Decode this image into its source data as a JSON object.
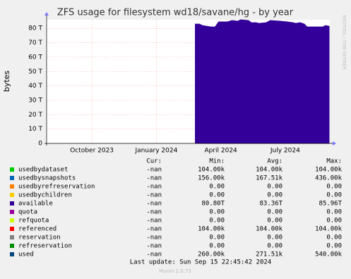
{
  "chart_data": {
    "type": "area",
    "title": "ZFS usage for filesystem wd18/savane/hg - by year",
    "y_label": "bytes",
    "side_text": "RRDTOOL / TOBI OETIKER",
    "xlim": [
      0,
      400
    ],
    "xticks": [
      {
        "value": 64,
        "label": "October 2023"
      },
      {
        "value": 155,
        "label": "January 2024"
      },
      {
        "value": 246,
        "label": "April 2024"
      },
      {
        "value": 337,
        "label": "July 2024"
      }
    ],
    "ylim": [
      0,
      86
    ],
    "yticks": [
      0,
      {
        "value": 10,
        "label": "10 T"
      },
      {
        "value": 20,
        "label": "20 T"
      },
      {
        "value": 30,
        "label": "30 T"
      },
      {
        "value": 40,
        "label": "40 T"
      },
      {
        "value": 50,
        "label": "50 T"
      },
      {
        "value": 60,
        "label": "60 T"
      },
      {
        "value": 70,
        "label": "70 T"
      },
      {
        "value": 80,
        "label": "80 T"
      }
    ],
    "grid": true,
    "series": [
      {
        "name": "available",
        "color": "#330099",
        "x": [
          210,
          216,
          220,
          226,
          232,
          238,
          243,
          255,
          262,
          270,
          274,
          285,
          289,
          296,
          300,
          310,
          316,
          330,
          340,
          348,
          352,
          358,
          364,
          368,
          390,
          394,
          399
        ],
        "values": [
          83.0,
          83.0,
          82.0,
          81.5,
          81.0,
          81.0,
          84.5,
          84.5,
          85.5,
          85.0,
          86.0,
          85.5,
          84.0,
          84.0,
          83.5,
          84.0,
          85.5,
          85.0,
          84.5,
          84.0,
          83.5,
          84.0,
          83.0,
          81.0,
          81.0,
          82.0,
          81.5
        ]
      }
    ]
  },
  "legend": {
    "headers": [
      "Cur:",
      "Min:",
      "Avg:",
      "Max:"
    ],
    "rows": [
      {
        "name": "usedbydataset",
        "color": "#00cc00",
        "cells": [
          "-nan",
          "104.00k",
          "104.00k",
          "104.00k"
        ]
      },
      {
        "name": "usedbysnapshots",
        "color": "#0066b3",
        "cells": [
          "-nan",
          "156.00k",
          "167.51k",
          "436.00k"
        ]
      },
      {
        "name": "usedbyrefreservation",
        "color": "#ff8000",
        "cells": [
          "-nan",
          "0.00",
          "0.00",
          "0.00"
        ]
      },
      {
        "name": "usedbychildren",
        "color": "#ffcc00",
        "cells": [
          "-nan",
          "0.00",
          "0.00",
          "0.00"
        ]
      },
      {
        "name": "available",
        "color": "#330099",
        "cells": [
          "-nan",
          "80.80T",
          "83.36T",
          "85.96T"
        ]
      },
      {
        "name": "quota",
        "color": "#990099",
        "cells": [
          "-nan",
          "0.00",
          "0.00",
          "0.00"
        ]
      },
      {
        "name": "refquota",
        "color": "#ccff00",
        "cells": [
          "-nan",
          "0.00",
          "0.00",
          "0.00"
        ]
      },
      {
        "name": "referenced",
        "color": "#ff0000",
        "cells": [
          "-nan",
          "104.00k",
          "104.00k",
          "104.00k"
        ]
      },
      {
        "name": "reservation",
        "color": "#808080",
        "cells": [
          "-nan",
          "0.00",
          "0.00",
          "0.00"
        ]
      },
      {
        "name": "refreservation",
        "color": "#008f00",
        "cells": [
          "-nan",
          "0.00",
          "0.00",
          "0.00"
        ]
      },
      {
        "name": "used",
        "color": "#00487d",
        "cells": [
          "-nan",
          "260.00k",
          "271.51k",
          "540.00k"
        ]
      }
    ]
  },
  "footer": {
    "last_update": "Last update: Sun Sep 15 22:45:42 2024",
    "version": "Munin 2.0.73"
  }
}
